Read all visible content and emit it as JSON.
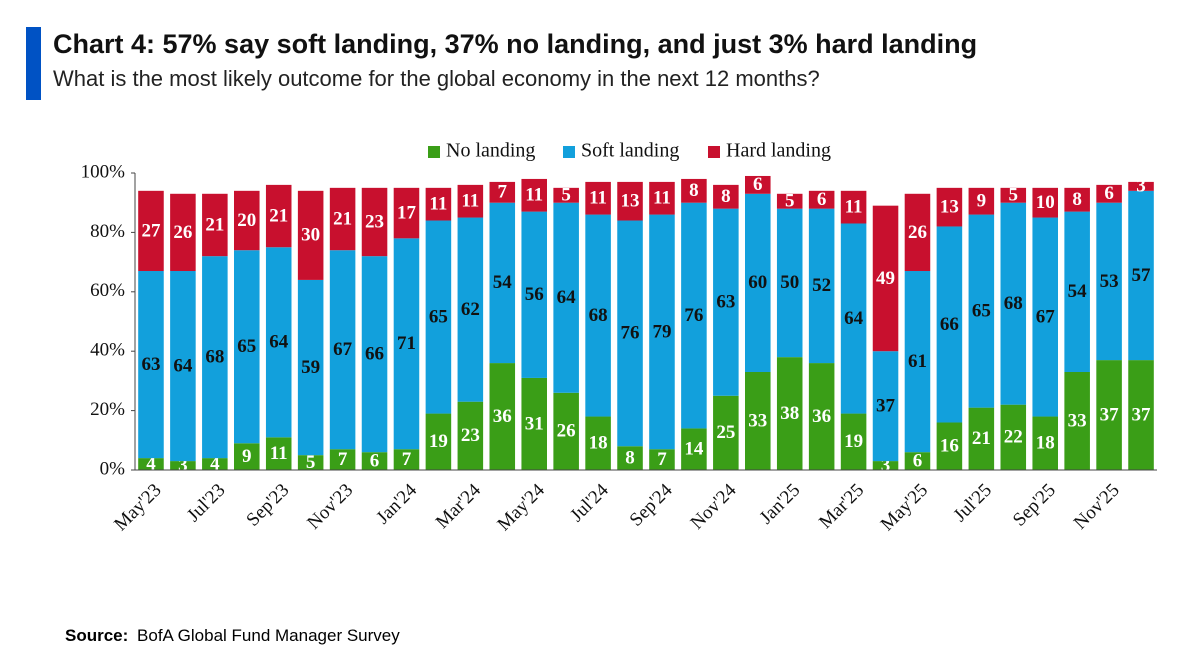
{
  "chart_data": {
    "type": "stacked-bar",
    "title": "Chart 4: 57% say soft landing, 37% no landing, and just 3% hard landing",
    "subtitle": "What is the most likely outcome for the global economy in the next 12 months?",
    "categories": [
      "May'23",
      null,
      "Jul'23",
      null,
      "Sep'23",
      null,
      "Nov'23",
      null,
      "Jan'24",
      null,
      "Mar'24",
      null,
      "May'24",
      null,
      "Jul'24",
      null,
      "Sep'24",
      null,
      "Nov'24",
      null,
      "Jan'25",
      null,
      "Mar'25",
      null,
      "May'25",
      null,
      "Jul'25",
      null,
      "Sep'25",
      null,
      "Nov'25",
      null
    ],
    "series": [
      {
        "name": "No landing",
        "color": "#3a9e17",
        "values": [
          4,
          3,
          4,
          9,
          11,
          5,
          7,
          6,
          7,
          19,
          23,
          36,
          31,
          26,
          18,
          8,
          7,
          14,
          25,
          33,
          38,
          36,
          19,
          3,
          6,
          16,
          21,
          22,
          18,
          33,
          37,
          37
        ]
      },
      {
        "name": "Soft landing",
        "color": "#12a0dc",
        "values": [
          63,
          64,
          68,
          65,
          64,
          59,
          67,
          66,
          71,
          65,
          62,
          54,
          56,
          64,
          68,
          76,
          79,
          76,
          63,
          60,
          50,
          52,
          64,
          37,
          61,
          66,
          65,
          68,
          67,
          54,
          53,
          57
        ]
      },
      {
        "name": "Hard landing",
        "color": "#c8102e",
        "values": [
          27,
          26,
          21,
          20,
          21,
          30,
          21,
          23,
          17,
          11,
          11,
          7,
          11,
          5,
          11,
          13,
          11,
          8,
          8,
          6,
          5,
          6,
          11,
          49,
          26,
          13,
          9,
          5,
          10,
          8,
          6,
          3
        ]
      }
    ],
    "ylim": [
      0,
      100
    ],
    "yticks": [
      {
        "value": 0,
        "label": "0%"
      },
      {
        "value": 20,
        "label": "20%"
      },
      {
        "value": 40,
        "label": "40%"
      },
      {
        "value": 60,
        "label": "60%"
      },
      {
        "value": 80,
        "label": "80%"
      },
      {
        "value": 100,
        "label": "100%"
      }
    ],
    "source_label": "Source:",
    "source": "BofA Global Fund Manager Survey"
  }
}
